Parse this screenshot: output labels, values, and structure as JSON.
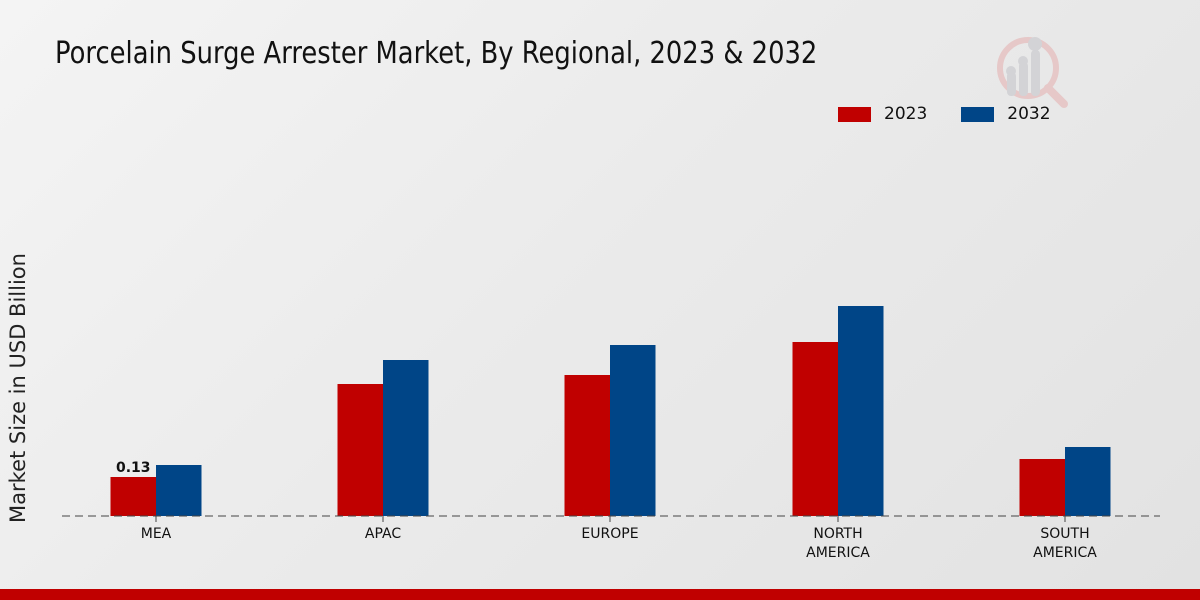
{
  "chart_data": {
    "type": "bar",
    "title": "Porcelain Surge Arrester Market, By Regional, 2023 & 2032",
    "xlabel": "",
    "ylabel": "Market Size in USD Billion",
    "categories": [
      "MEA",
      "APAC",
      "EUROPE",
      "NORTH AMERICA",
      "SOUTH AMERICA"
    ],
    "category_lines": [
      [
        "MEA"
      ],
      [
        "APAC"
      ],
      [
        "EUROPE"
      ],
      [
        "NORTH",
        "AMERICA"
      ],
      [
        "SOUTH",
        "AMERICA"
      ]
    ],
    "series": [
      {
        "name": "2023",
        "color": "#c00000",
        "values": [
          0.13,
          0.44,
          0.47,
          0.58,
          0.19
        ]
      },
      {
        "name": "2032",
        "color": "#004587",
        "values": [
          0.17,
          0.52,
          0.57,
          0.7,
          0.23
        ]
      }
    ],
    "data_labels": [
      {
        "series": "2023",
        "category": "MEA",
        "text": "0.13"
      }
    ],
    "ylim": [
      0,
      0.9
    ],
    "grid": false,
    "legend_position": "top-right",
    "baseline_style": "dashed"
  }
}
